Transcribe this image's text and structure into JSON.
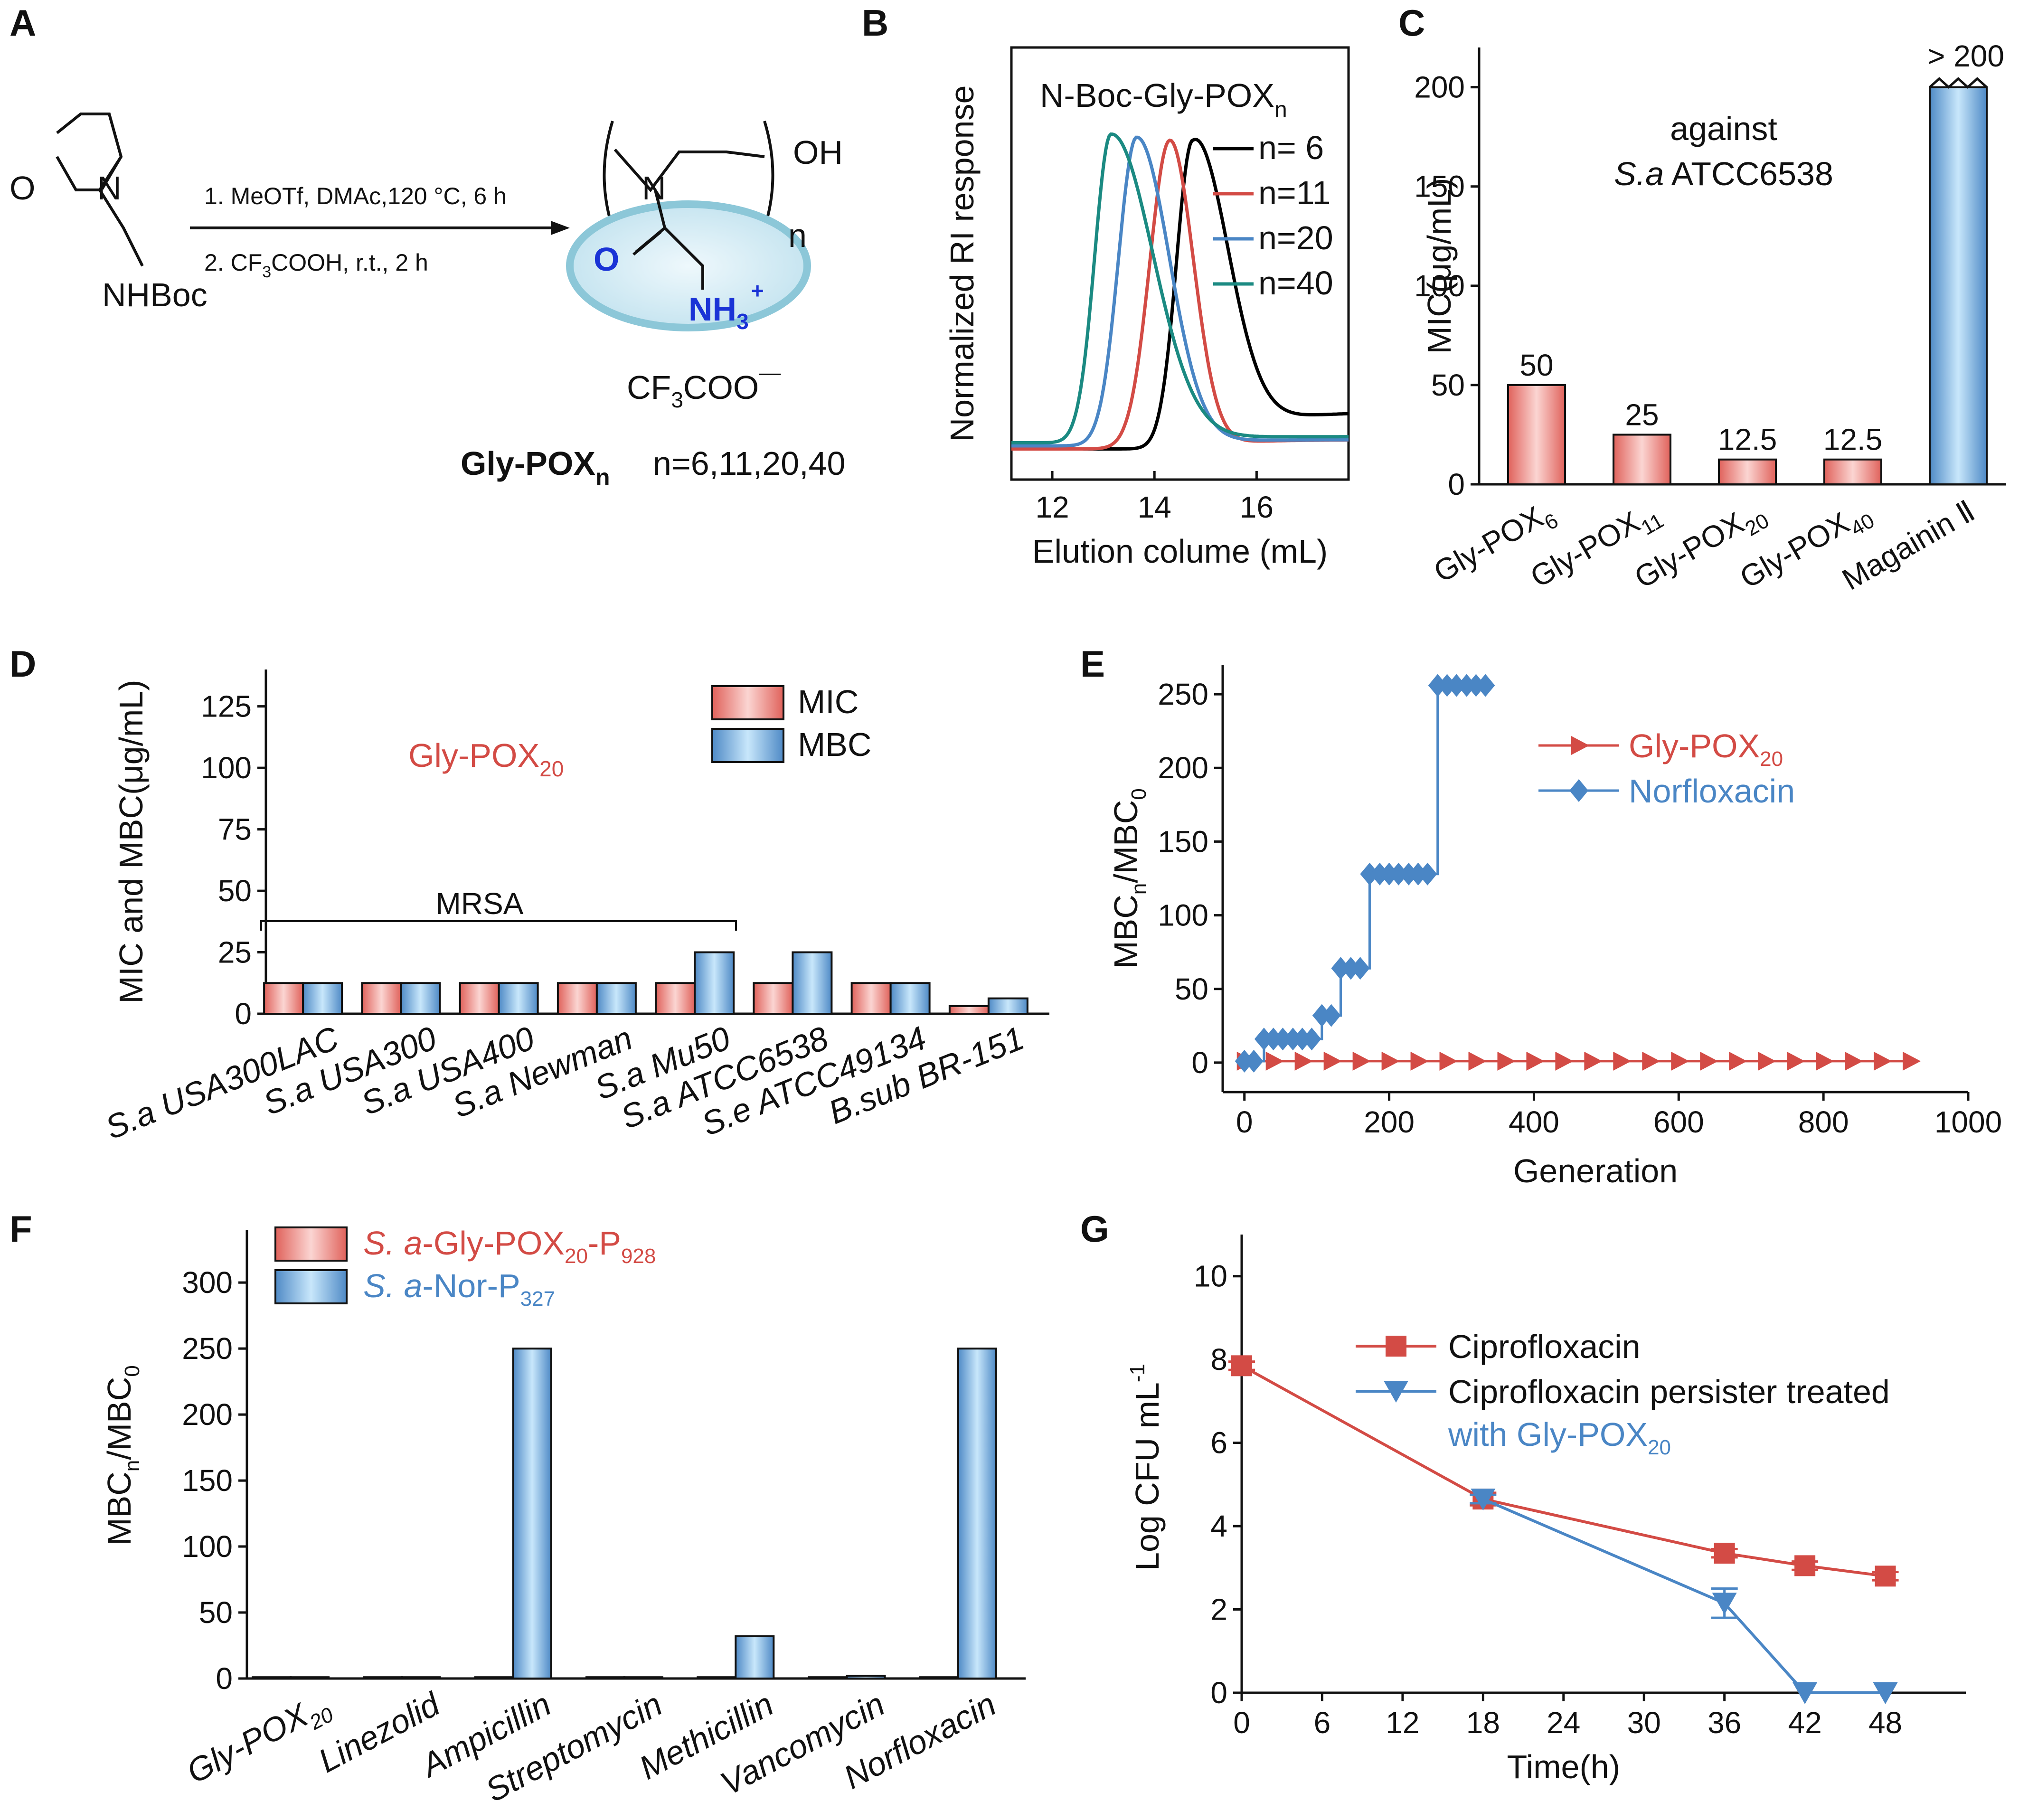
{
  "colors": {
    "red": "#d34b45",
    "blue": "#4a86c5",
    "black": "#000000",
    "teal": "#1b8a82",
    "bar_red_light": "#fbd5d2",
    "bar_blue_light": "#c8e7fb",
    "bar_blue_dark": "#4f8ac6",
    "ellipse_fill": "#d4ecf5",
    "ellipse_edge": "#8cc7d8",
    "text_blue": "#1a33d6"
  },
  "panels": {
    "A": {
      "letter": "A",
      "reactant": {
        "ring_O": "O",
        "ring_N": "N",
        "substituent": "NHBoc"
      },
      "steps": [
        "1. MeOTf, DMAc,120 °C, 6 h",
        "2. CF",
        "3",
        "COOH, r.t., 2 h"
      ],
      "product": {
        "N": "N",
        "OH": "OH",
        "repeat": "n",
        "carbonyl_O": "O",
        "amine": "NH",
        "amine_sub": "3",
        "amine_charge": "+",
        "counterion_main": "CF",
        "counterion_sub": "3",
        "counterion_rest": "COO",
        "counterion_charge": "—",
        "name": "Gly-POX",
        "name_sub": "n",
        "n_values": "n=6,11,20,40"
      }
    },
    "B": {
      "letter": "B",
      "inset_title": "N-Boc-Gly-POX",
      "inset_title_sub": "n"
    },
    "C": {
      "letter": "C",
      "annotation_line1": "against",
      "annotation_line2_italic": "S.a",
      "annotation_line2_rest": " ATCC6538",
      "top_label": "> 200"
    },
    "D": {
      "letter": "D",
      "inset_title": "Gly-POX",
      "inset_title_sub": "20",
      "bracket_label": "MRSA"
    },
    "E": {
      "letter": "E"
    },
    "F": {
      "letter": "F"
    },
    "G": {
      "letter": "G"
    }
  },
  "chart_data": [
    {
      "panel": "B",
      "type": "line",
      "xlabel": "Elution colume (mL)",
      "ylabel": "Normalized RI response",
      "xlim": [
        11.2,
        17.8
      ],
      "xticks": [
        12,
        14,
        16
      ],
      "series": [
        {
          "name": "n= 6",
          "color": "#000000",
          "center": 14.75,
          "width_left": 0.45,
          "width_right": 0.95,
          "baseline": 0.03,
          "tail": 0.12
        },
        {
          "name": "n=11",
          "color": "#d34b45",
          "center": 14.3,
          "width_left": 0.55,
          "width_right": 0.65,
          "baseline": 0.03,
          "tail": 0.03
        },
        {
          "name": "n=20",
          "color": "#4a86c5",
          "center": 13.65,
          "width_left": 0.5,
          "width_right": 0.9,
          "baseline": 0.04,
          "tail": 0.02
        },
        {
          "name": "n=40",
          "color": "#1b8a82",
          "center": 13.15,
          "width_left": 0.45,
          "width_right": 1.15,
          "baseline": 0.05,
          "tail": 0.02
        }
      ]
    },
    {
      "panel": "C",
      "type": "bar",
      "ylabel": "MIC(μg/mL)",
      "ylim": [
        0,
        220
      ],
      "yticks": [
        0,
        50,
        100,
        150,
        200
      ],
      "categories": [
        {
          "main": "Gly-POX",
          "sub": "6"
        },
        {
          "main": "Gly-POX",
          "sub": "11"
        },
        {
          "main": "Gly-POX",
          "sub": "20"
        },
        {
          "main": "Gly-POX",
          "sub": "40"
        },
        {
          "main": "Magainin Ⅱ",
          "sub": ""
        }
      ],
      "values": [
        50,
        25,
        12.5,
        12.5,
        200
      ],
      "value_labels": [
        "50",
        "25",
        "12.5",
        "12.5",
        ""
      ],
      "bar_colors": [
        "red",
        "red",
        "red",
        "red",
        "blue"
      ]
    },
    {
      "panel": "D",
      "type": "bar",
      "ylabel": "MIC and MBC(μg/mL)",
      "ylim": [
        0,
        140
      ],
      "yticks": [
        0,
        25,
        50,
        75,
        100,
        125
      ],
      "categories": [
        {
          "italic": "S.a USA300LAC"
        },
        {
          "italic": "S.a USA300"
        },
        {
          "italic": "S.a USA400"
        },
        {
          "italic": "S.a Newman"
        },
        {
          "italic": "S.a Mu50"
        },
        {
          "italic": "S.a ATCC6538"
        },
        {
          "italic": "S.e ATCC49134"
        },
        {
          "italic": "B.sub BR-151"
        }
      ],
      "series": [
        {
          "name": "MIC",
          "values": [
            12.5,
            12.5,
            12.5,
            12.5,
            12.5,
            12.5,
            12.5,
            3.1
          ]
        },
        {
          "name": "MBC",
          "values": [
            12.5,
            12.5,
            12.5,
            12.5,
            25,
            25,
            12.5,
            6.25
          ]
        }
      ]
    },
    {
      "panel": "E",
      "type": "line",
      "xlabel": "Generation",
      "ylabel_main": "MBC",
      "ylabel_sub1": "n",
      "ylabel_mid": "/MBC",
      "ylabel_sub2": "0",
      "xlim": [
        -30,
        1000
      ],
      "ylim": [
        -20,
        270
      ],
      "xticks": [
        0,
        200,
        400,
        600,
        800,
        1000
      ],
      "yticks": [
        0,
        50,
        100,
        150,
        200,
        250
      ],
      "series": [
        {
          "name": "Gly-POX",
          "name_sub": "20",
          "color": "#d34b45",
          "marker": "triangle-right",
          "x": [
            0,
            40,
            80,
            120,
            160,
            200,
            240,
            280,
            320,
            360,
            400,
            440,
            480,
            520,
            560,
            600,
            640,
            680,
            720,
            760,
            800,
            840,
            880,
            920
          ],
          "y": [
            1,
            1,
            1,
            1,
            1,
            1,
            1,
            1,
            1,
            1,
            1,
            1,
            1,
            1,
            1,
            1,
            1,
            1,
            1,
            1,
            1,
            1,
            1,
            1
          ]
        },
        {
          "name": "Norfloxacin",
          "name_sub": "",
          "color": "#4a86c5",
          "marker": "diamond",
          "x": [
            0,
            13,
            27,
            40,
            53,
            67,
            80,
            93,
            107,
            120,
            133,
            147,
            160,
            173,
            187,
            200,
            213,
            227,
            240,
            253,
            267,
            280,
            293,
            307,
            320,
            333
          ],
          "y": [
            1,
            1,
            16,
            16,
            16,
            16,
            16,
            16,
            32,
            32,
            64,
            64,
            64,
            128,
            128,
            128,
            128,
            128,
            128,
            128,
            256,
            256,
            256,
            256,
            256,
            256
          ]
        }
      ]
    },
    {
      "panel": "F",
      "type": "bar",
      "ylabel_main": "MBC",
      "ylabel_sub1": "n",
      "ylabel_mid": "/MBC",
      "ylabel_sub2": "0",
      "ylim": [
        0,
        340
      ],
      "yticks": [
        0,
        50,
        100,
        150,
        200,
        250,
        300
      ],
      "categories": [
        {
          "main": "Gly-POX",
          "sub": "20"
        },
        {
          "main": "Linezolid",
          "sub": ""
        },
        {
          "main": "Ampicillin",
          "sub": ""
        },
        {
          "main": "Streptomycin",
          "sub": ""
        },
        {
          "main": "Methicillin",
          "sub": ""
        },
        {
          "main": "Vancomycin",
          "sub": ""
        },
        {
          "main": "Norfloxacin",
          "sub": ""
        }
      ],
      "series": [
        {
          "name_italic": "S. a",
          "name_rest": "-Gly-POX",
          "name_sub1": "20",
          "name_rest2": "-P",
          "name_sub2": "928",
          "values": [
            1,
            1,
            1,
            1,
            1,
            1,
            1
          ]
        },
        {
          "name_italic": "S. a",
          "name_rest": "-Nor-P",
          "name_sub1": "327",
          "name_rest2": "",
          "name_sub2": "",
          "values": [
            1,
            1,
            250,
            1,
            32,
            2,
            250
          ]
        }
      ]
    },
    {
      "panel": "G",
      "type": "line",
      "xlabel": "Time(h)",
      "ylabel_main": "Log CFU mL",
      "ylabel_sup": "-1",
      "xlim": [
        0,
        54
      ],
      "ylim": [
        0,
        11
      ],
      "xticks": [
        0,
        6,
        12,
        18,
        24,
        30,
        36,
        42,
        48
      ],
      "yticks": [
        0,
        2,
        4,
        6,
        8,
        10
      ],
      "series": [
        {
          "name": "Ciprofloxacin",
          "color": "#d34b45",
          "marker": "square",
          "x": [
            0,
            18,
            36,
            42,
            48
          ],
          "y": [
            7.85,
            4.65,
            3.35,
            3.05,
            2.8
          ],
          "err": [
            0.1,
            0.15,
            0.1,
            0.1,
            0.1
          ]
        },
        {
          "name_line1": "Ciprofloxacin persister treated",
          "name_line2": "with Gly-POX",
          "name_sub": "20",
          "color": "#4a86c5",
          "marker": "triangle-down",
          "x": [
            18,
            36,
            42,
            48
          ],
          "y": [
            4.65,
            2.15,
            0,
            0
          ],
          "err": [
            0.1,
            0.35,
            0,
            0
          ]
        }
      ]
    }
  ]
}
